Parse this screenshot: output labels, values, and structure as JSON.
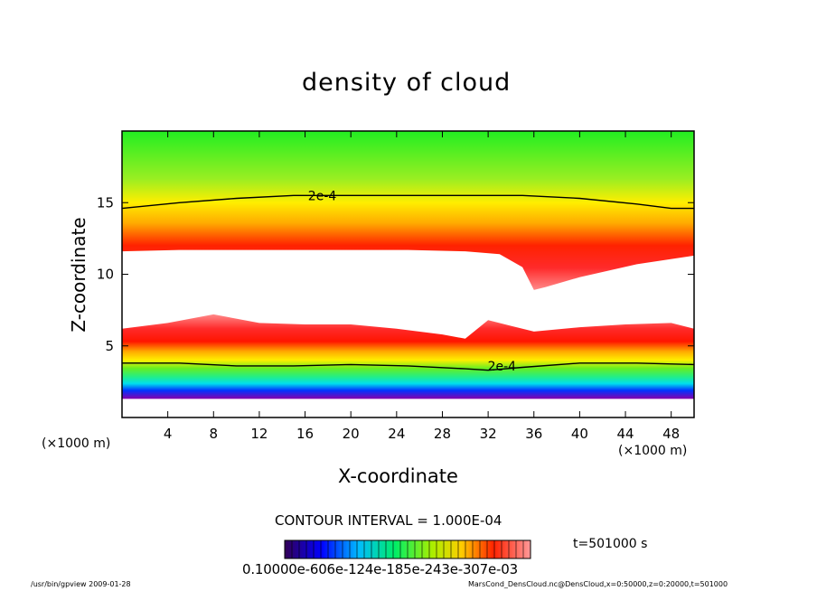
{
  "chart_data": {
    "type": "heatmap",
    "title": "density of cloud",
    "xlabel": "X-coordinate",
    "ylabel": "Z-coordinate",
    "x_unit_label": "(×1000 m)",
    "x_unit_label_right": "(×1000 m)",
    "xlim": [
      0,
      50
    ],
    "ylim": [
      0,
      20
    ],
    "xticks": [
      4,
      8,
      12,
      16,
      20,
      24,
      28,
      32,
      36,
      40,
      44,
      48
    ],
    "yticks": [
      5,
      10,
      15
    ],
    "contour_labels": [
      {
        "text": "2e-4",
        "x": 17.5,
        "z": 15.5
      },
      {
        "text": "2e-4",
        "x": 33.2,
        "z": 3.6
      }
    ],
    "upper_contour_2e4": {
      "x": [
        0,
        5,
        10,
        15,
        20,
        25,
        30,
        35,
        40,
        45,
        48,
        50
      ],
      "z": [
        14.6,
        15.0,
        15.3,
        15.5,
        15.5,
        15.5,
        15.5,
        15.5,
        15.3,
        14.9,
        14.6,
        14.6
      ]
    },
    "lower_contour_2e4": {
      "x": [
        0,
        5,
        10,
        15,
        20,
        25,
        30,
        32,
        35,
        40,
        45,
        50
      ],
      "z": [
        3.8,
        3.8,
        3.6,
        3.6,
        3.7,
        3.6,
        3.4,
        3.3,
        3.5,
        3.8,
        3.8,
        3.7
      ]
    },
    "cloud_free_upper_boundary": {
      "x": [
        0,
        5,
        10,
        15,
        20,
        25,
        30,
        33,
        35,
        36,
        37,
        40,
        45,
        50
      ],
      "z": [
        11.6,
        11.7,
        11.7,
        11.7,
        11.7,
        11.7,
        11.6,
        11.4,
        10.5,
        8.9,
        9.1,
        9.8,
        10.7,
        11.3
      ]
    },
    "cloud_free_lower_boundary": {
      "x": [
        0,
        4,
        8,
        12,
        16,
        20,
        24,
        28,
        30,
        32,
        34,
        36,
        40,
        44,
        48,
        50
      ],
      "z": [
        6.2,
        6.6,
        7.2,
        6.6,
        6.5,
        6.5,
        6.2,
        5.8,
        5.5,
        6.8,
        6.4,
        6.0,
        6.3,
        6.5,
        6.6,
        6.2
      ]
    },
    "colorbar_label": "0.10000e-606e-124e-185e-243e-307e-03",
    "contour_interval_text": "CONTOUR INTERVAL = 1.000E-04",
    "time_text": "t=501000 s"
  },
  "footer": {
    "left": "/usr/bin/gpview  2009-01-28",
    "right": "MarsCond_DensCloud.nc@DensCloud,x=0:50000,z=0:20000,t=501000"
  },
  "colors": {
    "green": "#22ee22",
    "red": "#ff0000",
    "pink": "#ff8888",
    "blue": "#0000ff",
    "purple": "#8800aa"
  }
}
